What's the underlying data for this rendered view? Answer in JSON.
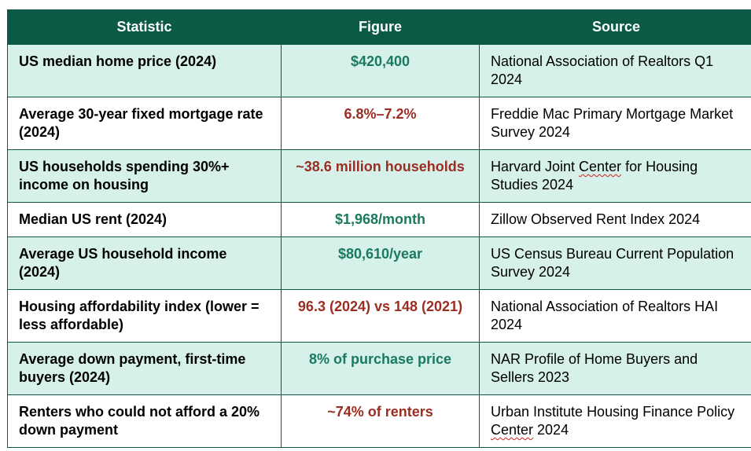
{
  "headers": {
    "statistic": "Statistic",
    "figure": "Figure",
    "source": "Source"
  },
  "colors": {
    "header_bg": "#0b5a45",
    "row_tint": "#d6f0ea",
    "figure_green": "#1a7a5e",
    "figure_red": "#9b2d22"
  },
  "rows": [
    {
      "statistic": "US median home price (2024)",
      "figure": "$420,400",
      "figure_color": "green",
      "source": "National Association of Realtors Q1 2024"
    },
    {
      "statistic": "Average 30-year fixed mortgage rate (2024)",
      "figure": "6.8%–7.2%",
      "figure_color": "red",
      "source": "Freddie Mac Primary Mortgage Market Survey 2024"
    },
    {
      "statistic": "US households spending 30%+ income on housing",
      "figure": "~38.6 million households",
      "figure_color": "red",
      "source_pre": "Harvard Joint ",
      "source_flag": "Center",
      "source_post": " for Housing Studies 2024"
    },
    {
      "statistic": "Median US rent (2024)",
      "figure": "$1,968/month",
      "figure_color": "green",
      "source": "Zillow Observed Rent Index 2024"
    },
    {
      "statistic": "Average US household income (2024)",
      "figure": "$80,610/year",
      "figure_color": "green",
      "source": "US Census Bureau Current Population Survey 2024"
    },
    {
      "statistic": "Housing affordability index (lower = less affordable)",
      "figure": "96.3 (2024) vs 148 (2021)",
      "figure_color": "red",
      "source": "National Association of Realtors HAI 2024"
    },
    {
      "statistic": "Average down payment, first-time buyers (2024)",
      "figure": "8% of purchase price",
      "figure_color": "green",
      "source": "NAR Profile of Home Buyers and Sellers 2023"
    },
    {
      "statistic": "Renters who could not afford a 20% down payment",
      "figure": "~74% of renters",
      "figure_color": "red",
      "source_pre": "Urban Institute Housing Finance Policy ",
      "source_flag": "Center",
      "source_post": " 2024"
    }
  ]
}
